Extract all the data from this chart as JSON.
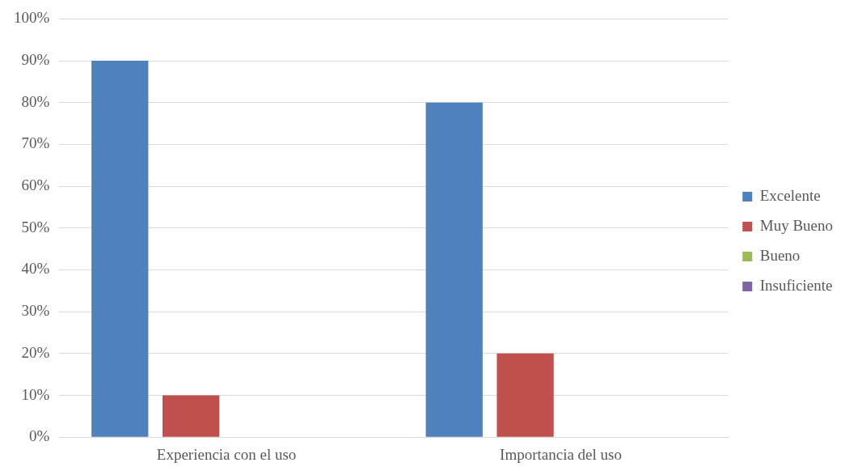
{
  "chart_data": {
    "type": "bar",
    "categories": [
      "Experiencia con el uso",
      "Importancia del uso"
    ],
    "series": [
      {
        "name": "Excelente",
        "color": "#4f81bd",
        "values": [
          90,
          80
        ]
      },
      {
        "name": "Muy Bueno",
        "color": "#c0504d",
        "values": [
          10,
          20
        ]
      },
      {
        "name": "Bueno",
        "color": "#9bbb59",
        "values": [
          0,
          0
        ]
      },
      {
        "name": "Insuficiente",
        "color": "#8064a2",
        "values": [
          0,
          0
        ]
      }
    ],
    "ylim": [
      0,
      100
    ],
    "yticks": [
      {
        "value": 0,
        "label": "0%"
      },
      {
        "value": 10,
        "label": "10%"
      },
      {
        "value": 20,
        "label": "20%"
      },
      {
        "value": 30,
        "label": "30%"
      },
      {
        "value": 40,
        "label": "40%"
      },
      {
        "value": 50,
        "label": "50%"
      },
      {
        "value": 60,
        "label": "60%"
      },
      {
        "value": 70,
        "label": "70%"
      },
      {
        "value": 80,
        "label": "80%"
      },
      {
        "value": 90,
        "label": "90%"
      },
      {
        "value": 100,
        "label": "100%"
      }
    ],
    "grid": "y",
    "legend": "right"
  }
}
